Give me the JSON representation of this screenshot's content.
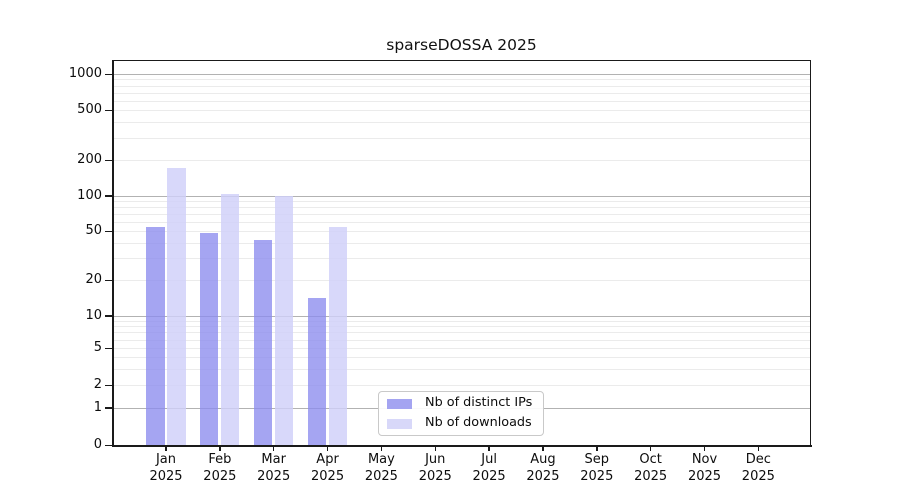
{
  "chart_data": {
    "type": "bar",
    "title": "sparseDOSSA 2025",
    "x_categories": [
      "Jan",
      "Feb",
      "Mar",
      "Apr",
      "May",
      "Jun",
      "Jul",
      "Aug",
      "Sep",
      "Oct",
      "Nov",
      "Dec"
    ],
    "x_category_year": "2025",
    "series": [
      {
        "name": "Nb of distinct IPs",
        "color": "#a4a4f1",
        "fill": "rgba(140,140,238,0.78)",
        "values": [
          54,
          48,
          42,
          14,
          0,
          0,
          0,
          0,
          0,
          0,
          0,
          0
        ]
      },
      {
        "name": "Nb of downloads",
        "color": "#d8d8f9",
        "fill": "rgba(208,208,249,0.82)",
        "values": [
          172,
          103,
          100,
          54,
          0,
          0,
          0,
          0,
          0,
          0,
          0,
          0
        ]
      }
    ],
    "y_axis": {
      "scale": "symlog",
      "tick_labels": [
        "0",
        "1",
        "2",
        "5",
        "10",
        "20",
        "50",
        "100",
        "200",
        "500",
        "1000"
      ],
      "tick_values": [
        0,
        1,
        2,
        5,
        10,
        20,
        50,
        100,
        200,
        500,
        1000
      ],
      "major_gridlines": [
        1,
        10,
        100,
        1000
      ],
      "ylim": [
        0,
        1400
      ]
    },
    "legend": {
      "items": [
        "Nb of distinct IPs",
        "Nb of downloads"
      ],
      "position": "lower center"
    },
    "grid": true,
    "gridline_major_color": "#b2b2b2",
    "gridline_minor_color": "#ebebeb"
  }
}
